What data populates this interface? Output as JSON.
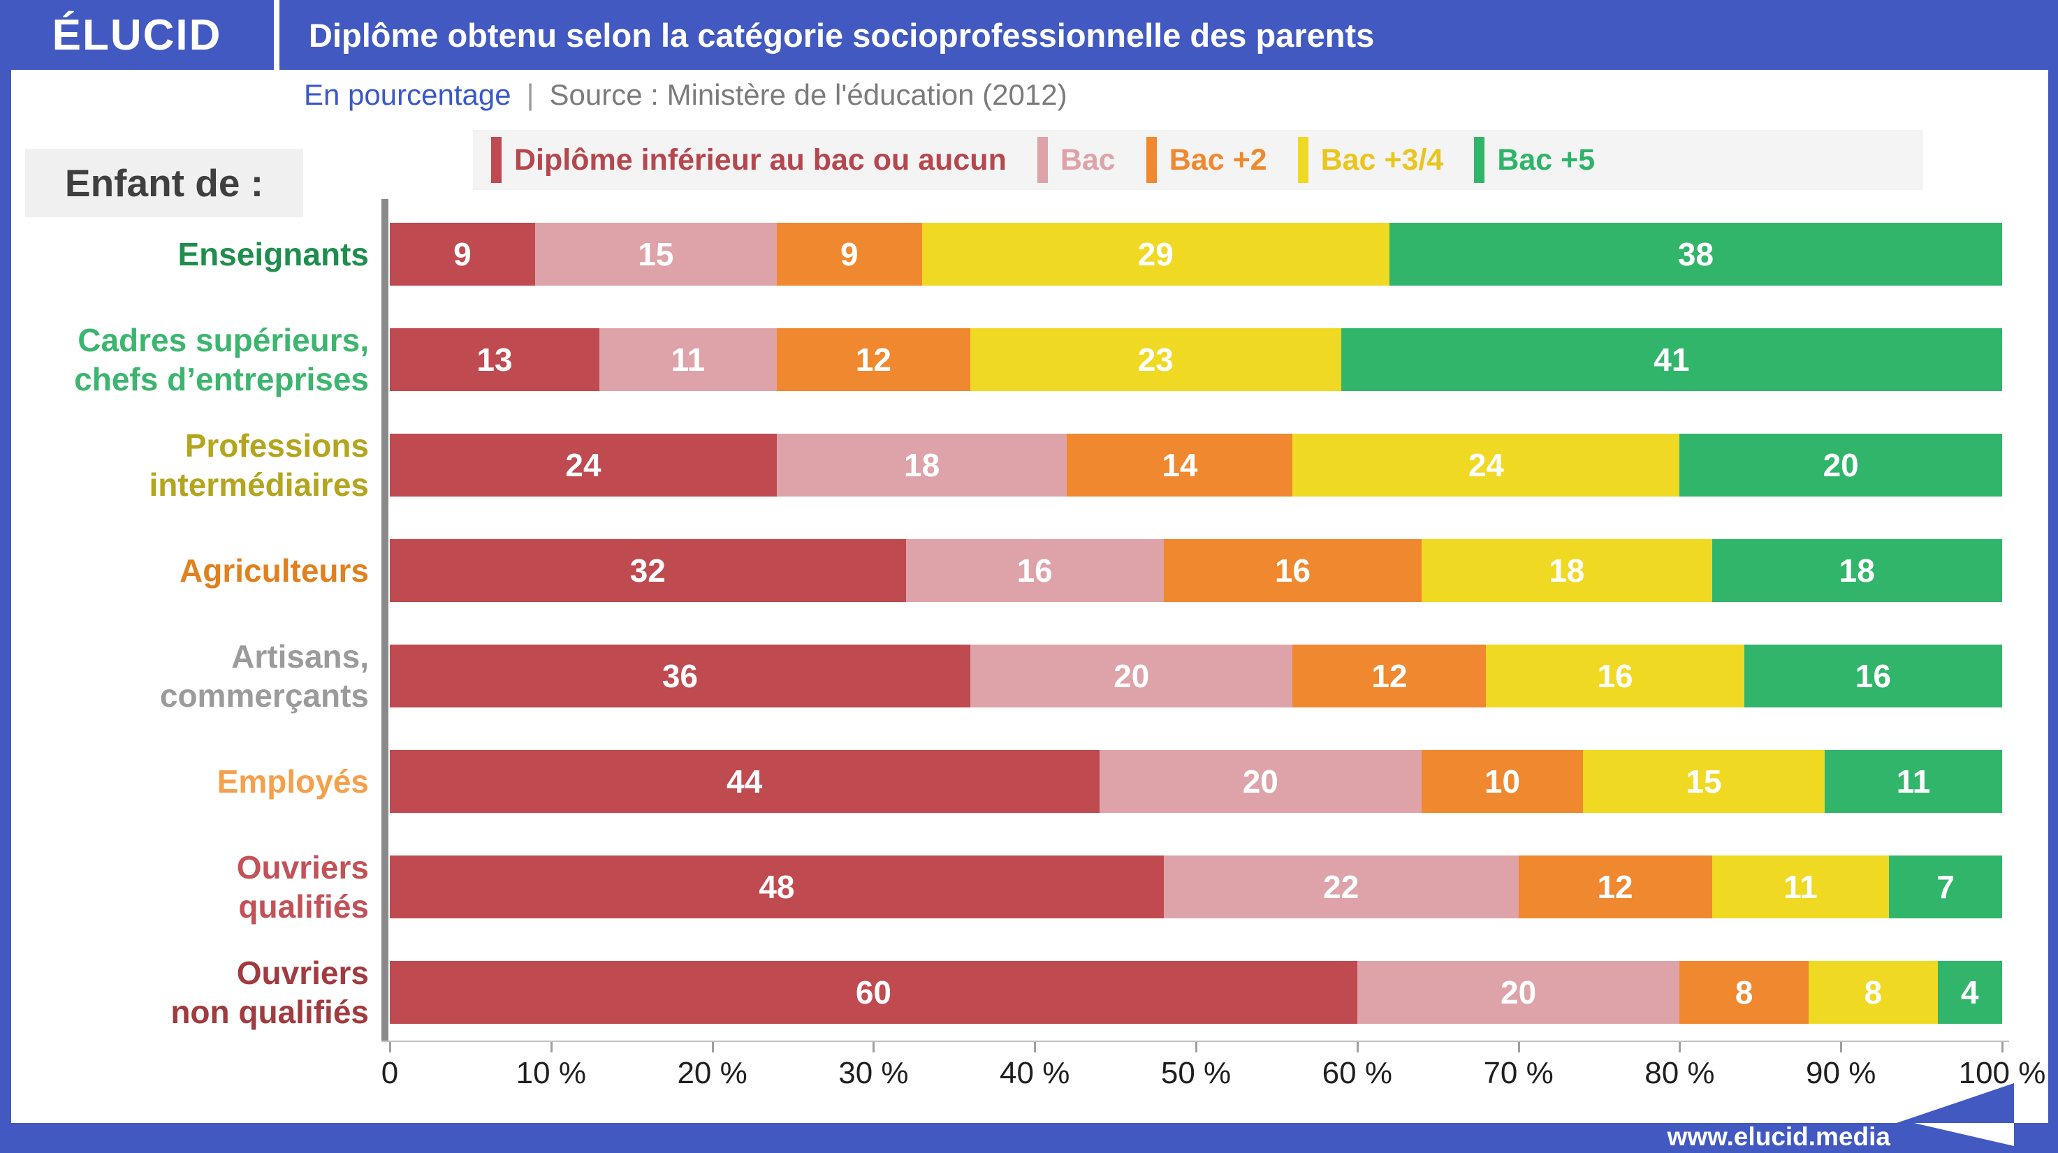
{
  "header": {
    "logo": "ÉLUCID",
    "title": "Diplôme obtenu selon la catégorie socioprofessionnelle des parents"
  },
  "subheader": {
    "unit_label": "En pourcentage",
    "separator": "|",
    "source": "Source : Ministère de l'éducation (2012)"
  },
  "row_axis_title": "Enfant de :",
  "colors": {
    "brand_blue": "#4159c1",
    "legend_background": "#f4f4f4",
    "axis_gray": "#8a8a8a",
    "value_text": "#ffffff"
  },
  "chart_data": {
    "type": "bar",
    "stacked": true,
    "orientation": "horizontal",
    "xlim": [
      0,
      100
    ],
    "x_ticks": [
      "0",
      "10 %",
      "20 %",
      "30 %",
      "40 %",
      "50 %",
      "60 %",
      "70 %",
      "80 %",
      "90 %",
      "100 %"
    ],
    "categories": [
      "Enseignants",
      "Cadres supérieurs,\nchefs d’entreprises",
      "Professions\nintermédiaires",
      "Agriculteurs",
      "Artisans,\ncommerçants",
      "Employés",
      "Ouvriers\nqualifiés",
      "Ouvriers\nnon qualifiés"
    ],
    "category_colors": [
      "#1f8e4d",
      "#3cb56f",
      "#b3a51e",
      "#e0811f",
      "#9b9b9b",
      "#f5a04a",
      "#c25258",
      "#a03b3f"
    ],
    "series": [
      {
        "name": "Diplôme inférieur au bac ou aucun",
        "color": "#bf4a50",
        "label_color": "#b5474e",
        "values": [
          9,
          13,
          24,
          32,
          36,
          44,
          48,
          60
        ]
      },
      {
        "name": "Bac",
        "color": "#dda3a8",
        "label_color": "#dda3a8",
        "values": [
          15,
          11,
          18,
          16,
          20,
          20,
          22,
          20
        ]
      },
      {
        "name": "Bac +2",
        "color": "#f0882f",
        "label_color": "#f0882f",
        "values": [
          9,
          12,
          14,
          16,
          12,
          10,
          12,
          8
        ]
      },
      {
        "name": "Bac +3/4",
        "color": "#f0d922",
        "label_color": "#e9c51d",
        "values": [
          29,
          23,
          24,
          18,
          16,
          15,
          11,
          8
        ]
      },
      {
        "name": "Bac +5",
        "color": "#31b56a",
        "label_color": "#2eb468",
        "values": [
          38,
          41,
          20,
          18,
          16,
          11,
          7,
          4
        ]
      }
    ],
    "legend_position": "top",
    "grid": false
  },
  "footer": {
    "url": "www.elucid.media"
  }
}
